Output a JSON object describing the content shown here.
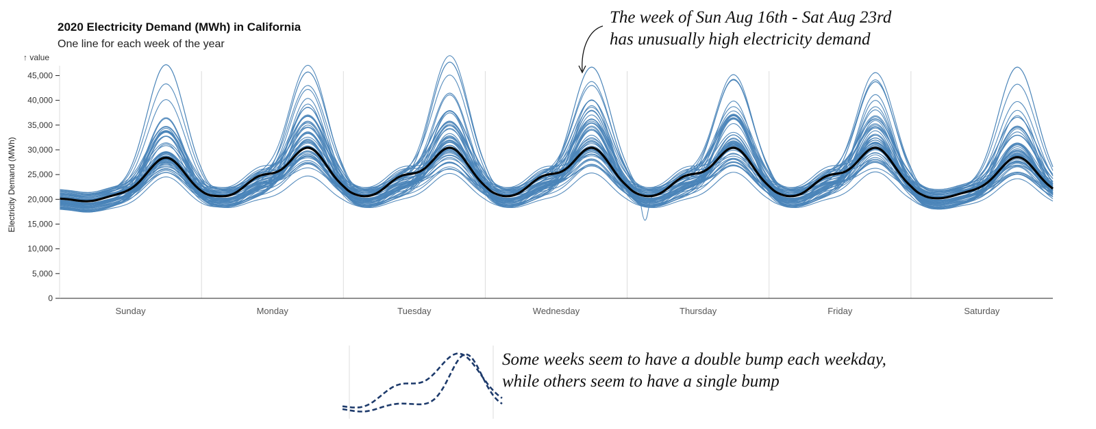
{
  "chart_data": {
    "type": "line",
    "title": "2020 Electricity Demand (MWh) in California",
    "subtitle": "One line for each week of the year",
    "y_unit_hint": "↑ value",
    "ylabel": "Electricity Demand (MWh)",
    "ylim": [
      0,
      47000
    ],
    "yticks": [
      0,
      5000,
      10000,
      15000,
      20000,
      25000,
      30000,
      35000,
      40000,
      45000
    ],
    "ytick_labels": [
      "0",
      "5,000",
      "10,000",
      "15,000",
      "20,000",
      "25,000",
      "30,000",
      "35,000",
      "40,000",
      "45,000"
    ],
    "days": [
      "Sunday",
      "Monday",
      "Tuesday",
      "Wednesday",
      "Thursday",
      "Friday",
      "Saturday"
    ],
    "series_color": "#4a84b8",
    "highlight_color": "#000000",
    "week_count": 52,
    "daily_pattern_mwh": {
      "sunday": {
        "min": 20200,
        "peak": 28500
      },
      "weekday": {
        "min": 21000,
        "morning": 24500,
        "peak": 30500
      },
      "saturday": {
        "min": 20800,
        "peak": 28600
      }
    },
    "highlighted_week_daily_peaks_mwh": [
      46000,
      44500,
      46500,
      45500,
      43000,
      42500,
      45500
    ],
    "notable_outlier_mwh": 14000,
    "annotations": [
      {
        "text_line1": "The week of Sun Aug 16th - Sat Aug 23rd",
        "text_line2": "has unusually high electricity demand"
      },
      {
        "text_line1": "Some weeks seem to have a double bump each weekday,",
        "text_line2": "while others seem to have a single bump"
      }
    ]
  },
  "legend_color": "#1d3a6b"
}
